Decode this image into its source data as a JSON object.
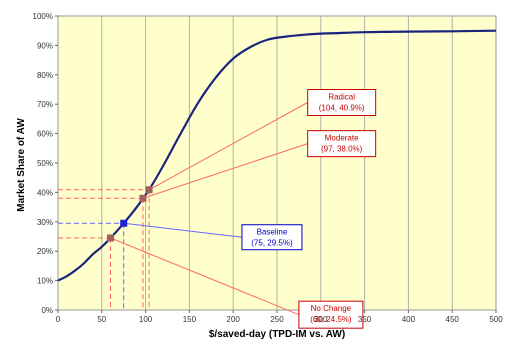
{
  "chart_data": {
    "type": "line",
    "title": "",
    "xlabel": "$/saved-day (TPD-IM vs. AW)",
    "ylabel": "Market Share of AW",
    "xlim": [
      0,
      500
    ],
    "ylim": [
      0,
      100
    ],
    "x_ticks": [
      "0",
      "50",
      "100",
      "150",
      "200",
      "250",
      "300",
      "350",
      "400",
      "450",
      "500"
    ],
    "y_ticks": [
      "0%",
      "10%",
      "20%",
      "30%",
      "40%",
      "50%",
      "60%",
      "70%",
      "80%",
      "90%",
      "100%"
    ],
    "grid": "vertical",
    "plot_background": "#ffffcc",
    "line_color": "#1a237e",
    "series": [
      {
        "x": [
          0,
          10,
          20,
          30,
          40,
          50,
          60,
          75,
          90,
          97,
          104,
          120,
          140,
          160,
          180,
          200,
          220,
          240,
          260,
          280,
          300,
          320,
          350,
          400,
          450,
          500
        ],
        "y": [
          10,
          11.5,
          13.5,
          16,
          19,
          21.5,
          24.5,
          29.5,
          35,
          38,
          40.9,
          49,
          60,
          70.5,
          79,
          85.5,
          89.5,
          92,
          93,
          93.6,
          94,
          94.2,
          94.5,
          94.7,
          94.8,
          95
        ]
      }
    ],
    "annotations": [
      {
        "id": "radical",
        "label": "Radical",
        "value": "(104, 40.9%)",
        "x": 104,
        "y": 40.9,
        "color": "#cc0000",
        "guide_color": "#ff6666",
        "marker_color": "#a06060",
        "box_x": 285,
        "box_y": 75,
        "box_w": 68,
        "box_h": 26
      },
      {
        "id": "moderate",
        "label": "Moderate",
        "value": "(97, 38.0%)",
        "x": 97,
        "y": 38.0,
        "color": "#cc0000",
        "guide_color": "#ff6666",
        "marker_color": "#a06060",
        "box_x": 285,
        "box_y": 61,
        "box_w": 68,
        "box_h": 26
      },
      {
        "id": "baseline",
        "label": "Baseline",
        "value": "(75, 29.5%)",
        "x": 75,
        "y": 29.5,
        "color": "#0000cc",
        "guide_color": "#6666ff",
        "marker_color": "#2222dd",
        "box_x": 210,
        "box_y": 29,
        "box_w": 60,
        "box_h": 25
      },
      {
        "id": "nochange",
        "label": "No Change",
        "value": "(60, 24.5%)",
        "x": 60,
        "y": 24.5,
        "color": "#cc0000",
        "guide_color": "#ff6666",
        "marker_color": "#a06060",
        "box_x": 275,
        "box_y": 3,
        "box_w": 64,
        "box_h": 27
      }
    ]
  }
}
